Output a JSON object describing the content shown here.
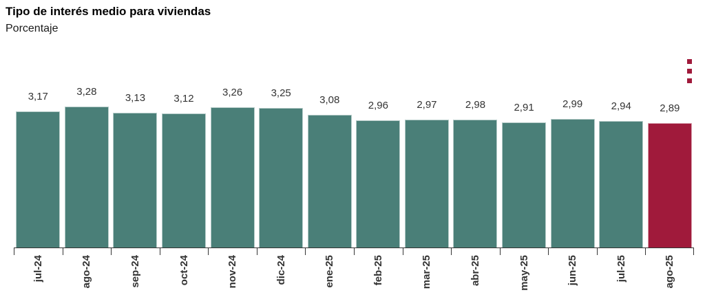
{
  "header": {
    "title": "Tipo de interés medio para viviendas",
    "subtitle": "Porcentaje"
  },
  "menu": {
    "icon": "kebab-menu-icon",
    "color": "#A01A3B"
  },
  "chart_data": {
    "type": "bar",
    "title": "Tipo de interés medio para viviendas",
    "subtitle": "Porcentaje",
    "categories": [
      "jul-24",
      "ago-24",
      "sep-24",
      "oct-24",
      "nov-24",
      "dic-24",
      "ene-25",
      "feb-25",
      "mar-25",
      "abr-25",
      "may-25",
      "jun-25",
      "jul-25",
      "ago-25"
    ],
    "values": [
      3.17,
      3.28,
      3.13,
      3.12,
      3.26,
      3.25,
      3.08,
      2.96,
      2.97,
      2.98,
      2.91,
      2.99,
      2.94,
      2.89
    ],
    "value_labels": [
      "3,17",
      "3,28",
      "3,13",
      "3,12",
      "3,26",
      "3,25",
      "3,08",
      "2,96",
      "2,97",
      "2,98",
      "2,91",
      "2,99",
      "2,94",
      "2,89"
    ],
    "xlabel": "",
    "ylabel": "Porcentaje",
    "ylim": [
      0,
      3.5
    ],
    "grid": false,
    "legend": false,
    "data_labels": true,
    "bar_color": "#4A7F78",
    "highlight_color": "#A01A3B",
    "highlight_index": 13,
    "axis_color": "#333333",
    "label_rotation": -90
  }
}
